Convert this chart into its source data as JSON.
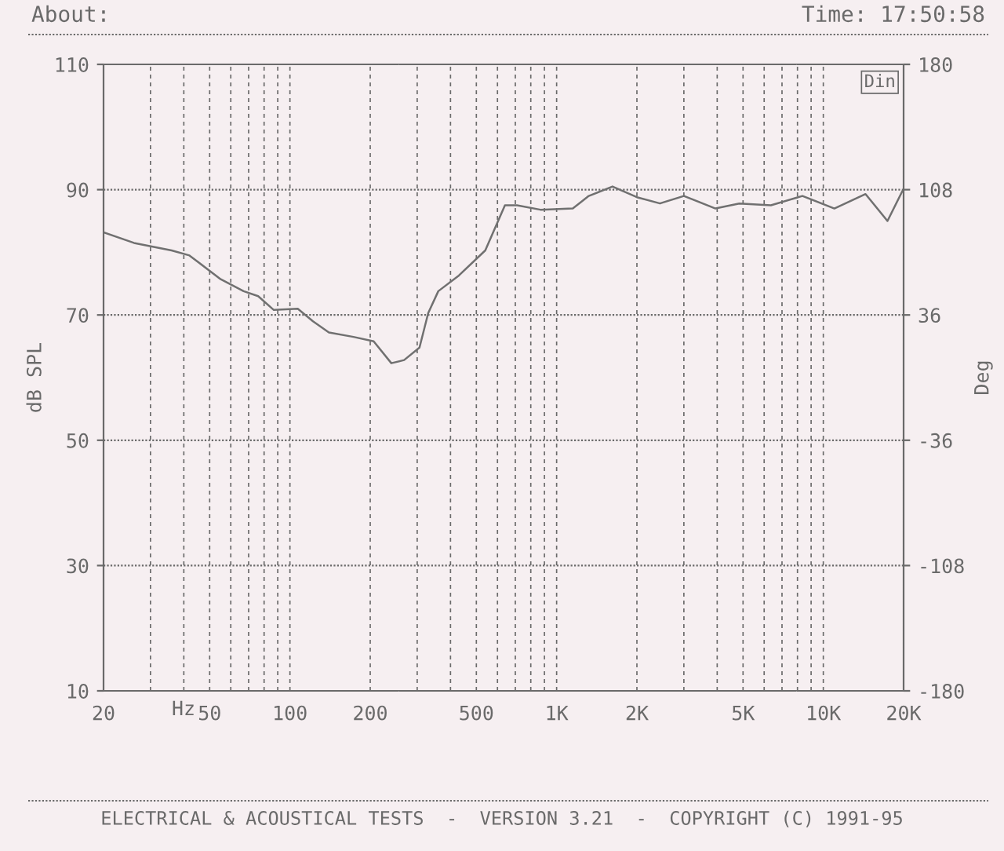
{
  "chart_data": {
    "type": "line",
    "title": "About:",
    "subtitle": "Time: 17:50:58",
    "xlabel": "Hz",
    "ylabel": "dB SPL",
    "y2label": "Deg",
    "annotations": [
      "Din",
      "ELECTRICAL & ACOUSTICAL TESTS  -  VERSION 3.21  -  COPYRIGHT (C) 1991-95"
    ],
    "log": "x",
    "grid": true,
    "xlim": [
      20,
      20000
    ],
    "xticks": [
      20,
      {
        "value": 30,
        "label": null
      },
      {
        "value": 40,
        "label": null
      },
      50,
      {
        "value": 60,
        "label": null
      },
      {
        "value": 70,
        "label": null
      },
      {
        "value": 80,
        "label": null
      },
      {
        "value": 90,
        "label": null
      },
      100,
      200,
      {
        "value": 300,
        "label": null
      },
      {
        "value": 400,
        "label": null
      },
      500,
      {
        "value": 600,
        "label": null
      },
      {
        "value": 700,
        "label": null
      },
      {
        "value": 800,
        "label": null
      },
      {
        "value": 900,
        "label": null
      },
      {
        "value": 1000,
        "label": "1K"
      },
      {
        "value": 2000,
        "label": "2K"
      },
      {
        "value": 3000,
        "label": null
      },
      {
        "value": 4000,
        "label": null
      },
      {
        "value": 5000,
        "label": "5K"
      },
      {
        "value": 6000,
        "label": null
      },
      {
        "value": 7000,
        "label": null
      },
      {
        "value": 8000,
        "label": null
      },
      {
        "value": 9000,
        "label": null
      },
      {
        "value": 10000,
        "label": "10K"
      },
      {
        "value": 20000,
        "label": "20K"
      }
    ],
    "ylim": [
      10,
      110
    ],
    "yticks": [
      10,
      30,
      50,
      70,
      90,
      110
    ],
    "y2lim": [
      -180,
      180
    ],
    "y2ticks": [
      -180,
      -108,
      -36,
      36,
      108,
      180
    ],
    "marker": "none",
    "line_style": "solid",
    "series": [
      {
        "color": "#707070",
        "x": [
          20,
          26,
          36,
          42,
          55,
          67,
          76,
          87,
          107,
          122,
          140,
          173,
          206,
          240,
          268,
          306,
          330,
          360,
          430,
          540,
          640,
          710,
          870,
          1150,
          1320,
          1620,
          2000,
          2440,
          3000,
          3940,
          4840,
          6360,
          8350,
          11000,
          14400,
          17400,
          19800
        ],
        "values": [
          83.2,
          81.5,
          80.3,
          79.5,
          75.7,
          73.8,
          73,
          70.8,
          71,
          69,
          67.2,
          66.5,
          65.8,
          62.3,
          62.8,
          64.8,
          70.3,
          73.8,
          76.3,
          80.3,
          87.5,
          87.5,
          86.8,
          87,
          89,
          90.5,
          88.8,
          87.8,
          89,
          87,
          87.8,
          87.5,
          89,
          87,
          89.3,
          85,
          89.8
        ]
      }
    ]
  }
}
